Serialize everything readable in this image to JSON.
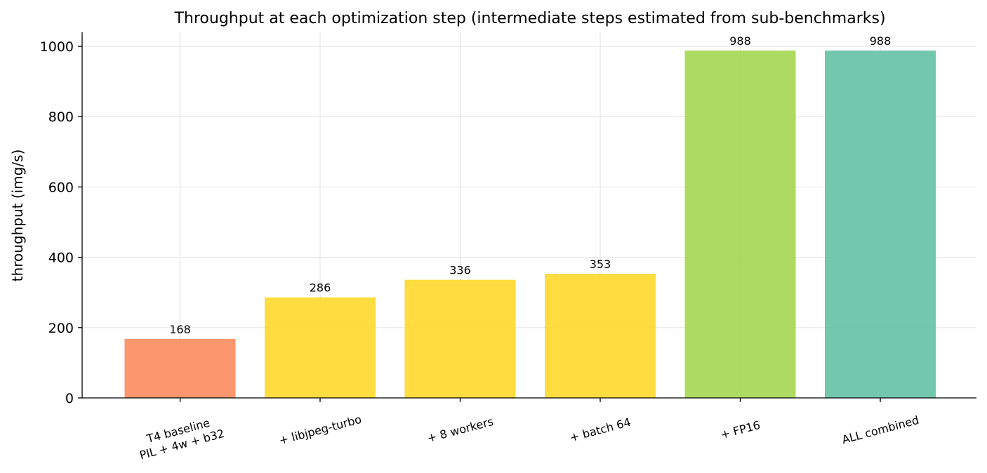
{
  "chart_data": {
    "type": "bar",
    "title": "Throughput at each optimization step (intermediate steps estimated from sub-benchmarks)",
    "xlabel": "",
    "ylabel": "throughput (img/s)",
    "ylim": [
      0,
      1040
    ],
    "yticks": [
      0,
      200,
      400,
      600,
      800,
      1000
    ],
    "grid": true,
    "categories": [
      [
        "T4 baseline",
        "PIL + 4w + b32"
      ],
      [
        "+ libjpeg-turbo"
      ],
      [
        "+ 8 workers"
      ],
      [
        "+ batch 64"
      ],
      [
        "+ FP16"
      ],
      [
        "ALL combined"
      ]
    ],
    "values": [
      168,
      286,
      336,
      353,
      988,
      988
    ],
    "data_labels": [
      "168",
      "286",
      "336",
      "353",
      "988",
      "988"
    ],
    "colors": [
      "#fc8d62",
      "#ffd92f",
      "#ffd92f",
      "#ffd92f",
      "#a6d854",
      "#66c2a5"
    ]
  }
}
